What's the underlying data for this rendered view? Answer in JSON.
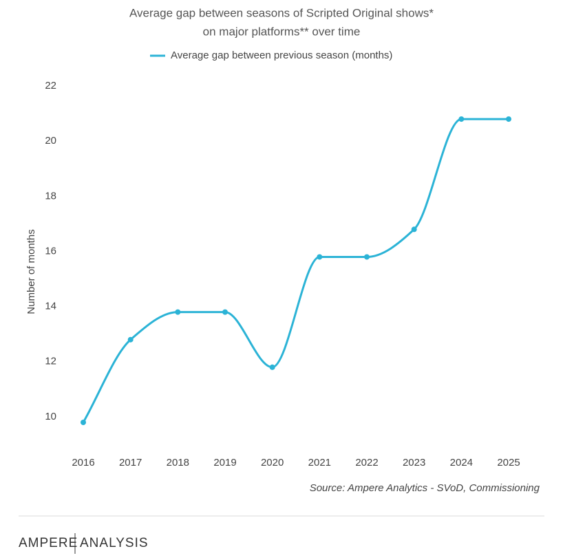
{
  "chart_data": {
    "type": "line",
    "title": [
      "Average gap between seasons of Scripted Original shows*",
      "on major platforms** over time"
    ],
    "y_label": "Number of months",
    "categories": [
      "2016",
      "2017",
      "2018",
      "2019",
      "2020",
      "2021",
      "2022",
      "2023",
      "2024",
      "2025"
    ],
    "series": [
      {
        "name": "Average gap between previous season (months)",
        "color": "#2bb3d6",
        "values": [
          9.8,
          12.8,
          13.8,
          13.8,
          11.8,
          15.8,
          15.8,
          16.8,
          20.8,
          20.8
        ]
      }
    ],
    "ylim": [
      9,
      22
    ],
    "yticks": [
      10,
      12,
      14,
      16,
      18,
      20,
      22
    ],
    "source": "Source: Ampere Analytics - SVoD, Commissioning"
  },
  "footer": {
    "brand": "AMPERE",
    "product": "ANALYSIS"
  }
}
